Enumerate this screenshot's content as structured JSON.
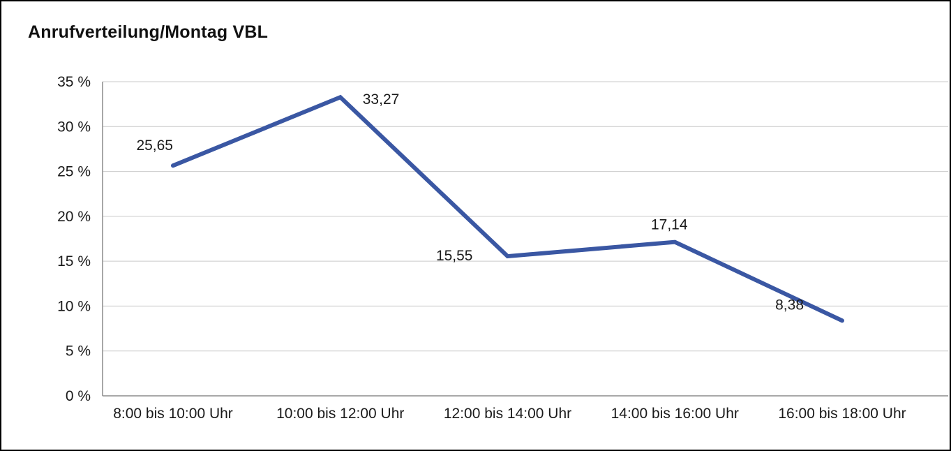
{
  "chart_data": {
    "type": "line",
    "title": "Anrufverteilung/Montag VBL",
    "categories": [
      "8:00 bis 10:00 Uhr",
      "10:00 bis 12:00 Uhr",
      "12:00 bis 14:00 Uhr",
      "14:00 bis 16:00 Uhr",
      "16:00 bis 18:00 Uhr"
    ],
    "values": [
      25.65,
      33.27,
      15.55,
      17.14,
      8.38
    ],
    "point_labels": [
      "25,65",
      "33,27",
      "15,55",
      "17,14",
      "8,38"
    ],
    "xlabel": "",
    "ylabel": "",
    "ylim": [
      0,
      35
    ],
    "ytick_labels": [
      "0 %",
      "5 %",
      "10 %",
      "15 %",
      "20 %",
      "25 %",
      "30 %",
      "35 %"
    ],
    "grid": true,
    "legend": "none",
    "colors": {
      "line": "#3A57A3",
      "gridline": "#C9C9C9",
      "axis": "#8C8C8C",
      "text": "#1A1A1A",
      "border": "#000000",
      "background": "#FFFFFF"
    }
  }
}
